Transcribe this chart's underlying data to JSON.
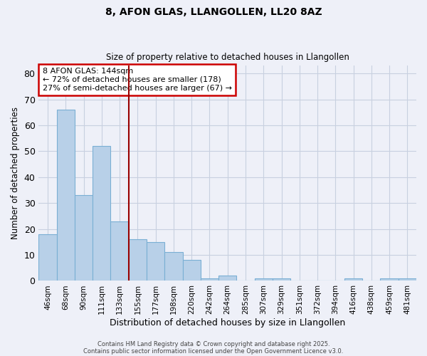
{
  "title1": "8, AFON GLAS, LLANGOLLEN, LL20 8AZ",
  "title2": "Size of property relative to detached houses in Llangollen",
  "xlabel": "Distribution of detached houses by size in Llangollen",
  "ylabel": "Number of detached properties",
  "categories": [
    "46sqm",
    "68sqm",
    "90sqm",
    "111sqm",
    "133sqm",
    "155sqm",
    "177sqm",
    "198sqm",
    "220sqm",
    "242sqm",
    "264sqm",
    "285sqm",
    "307sqm",
    "329sqm",
    "351sqm",
    "372sqm",
    "394sqm",
    "416sqm",
    "438sqm",
    "459sqm",
    "481sqm"
  ],
  "values": [
    18,
    66,
    33,
    52,
    23,
    16,
    15,
    11,
    8,
    1,
    2,
    0,
    1,
    1,
    0,
    0,
    0,
    1,
    0,
    1,
    1
  ],
  "bar_color": "#b8d0e8",
  "bar_edge_color": "#7aafd4",
  "vline_x_index": 4,
  "vline_color": "#990000",
  "annotation_text": "8 AFON GLAS: 144sqm\n← 72% of detached houses are smaller (178)\n27% of semi-detached houses are larger (67) →",
  "annotation_box_color": "#ffffff",
  "annotation_box_edge": "#cc0000",
  "ylim": [
    0,
    83
  ],
  "yticks": [
    0,
    10,
    20,
    30,
    40,
    50,
    60,
    70,
    80
  ],
  "grid_color": "#c8d0e0",
  "bg_color": "#eef0f8",
  "footer1": "Contains HM Land Registry data © Crown copyright and database right 2025.",
  "footer2": "Contains public sector information licensed under the Open Government Licence v3.0."
}
